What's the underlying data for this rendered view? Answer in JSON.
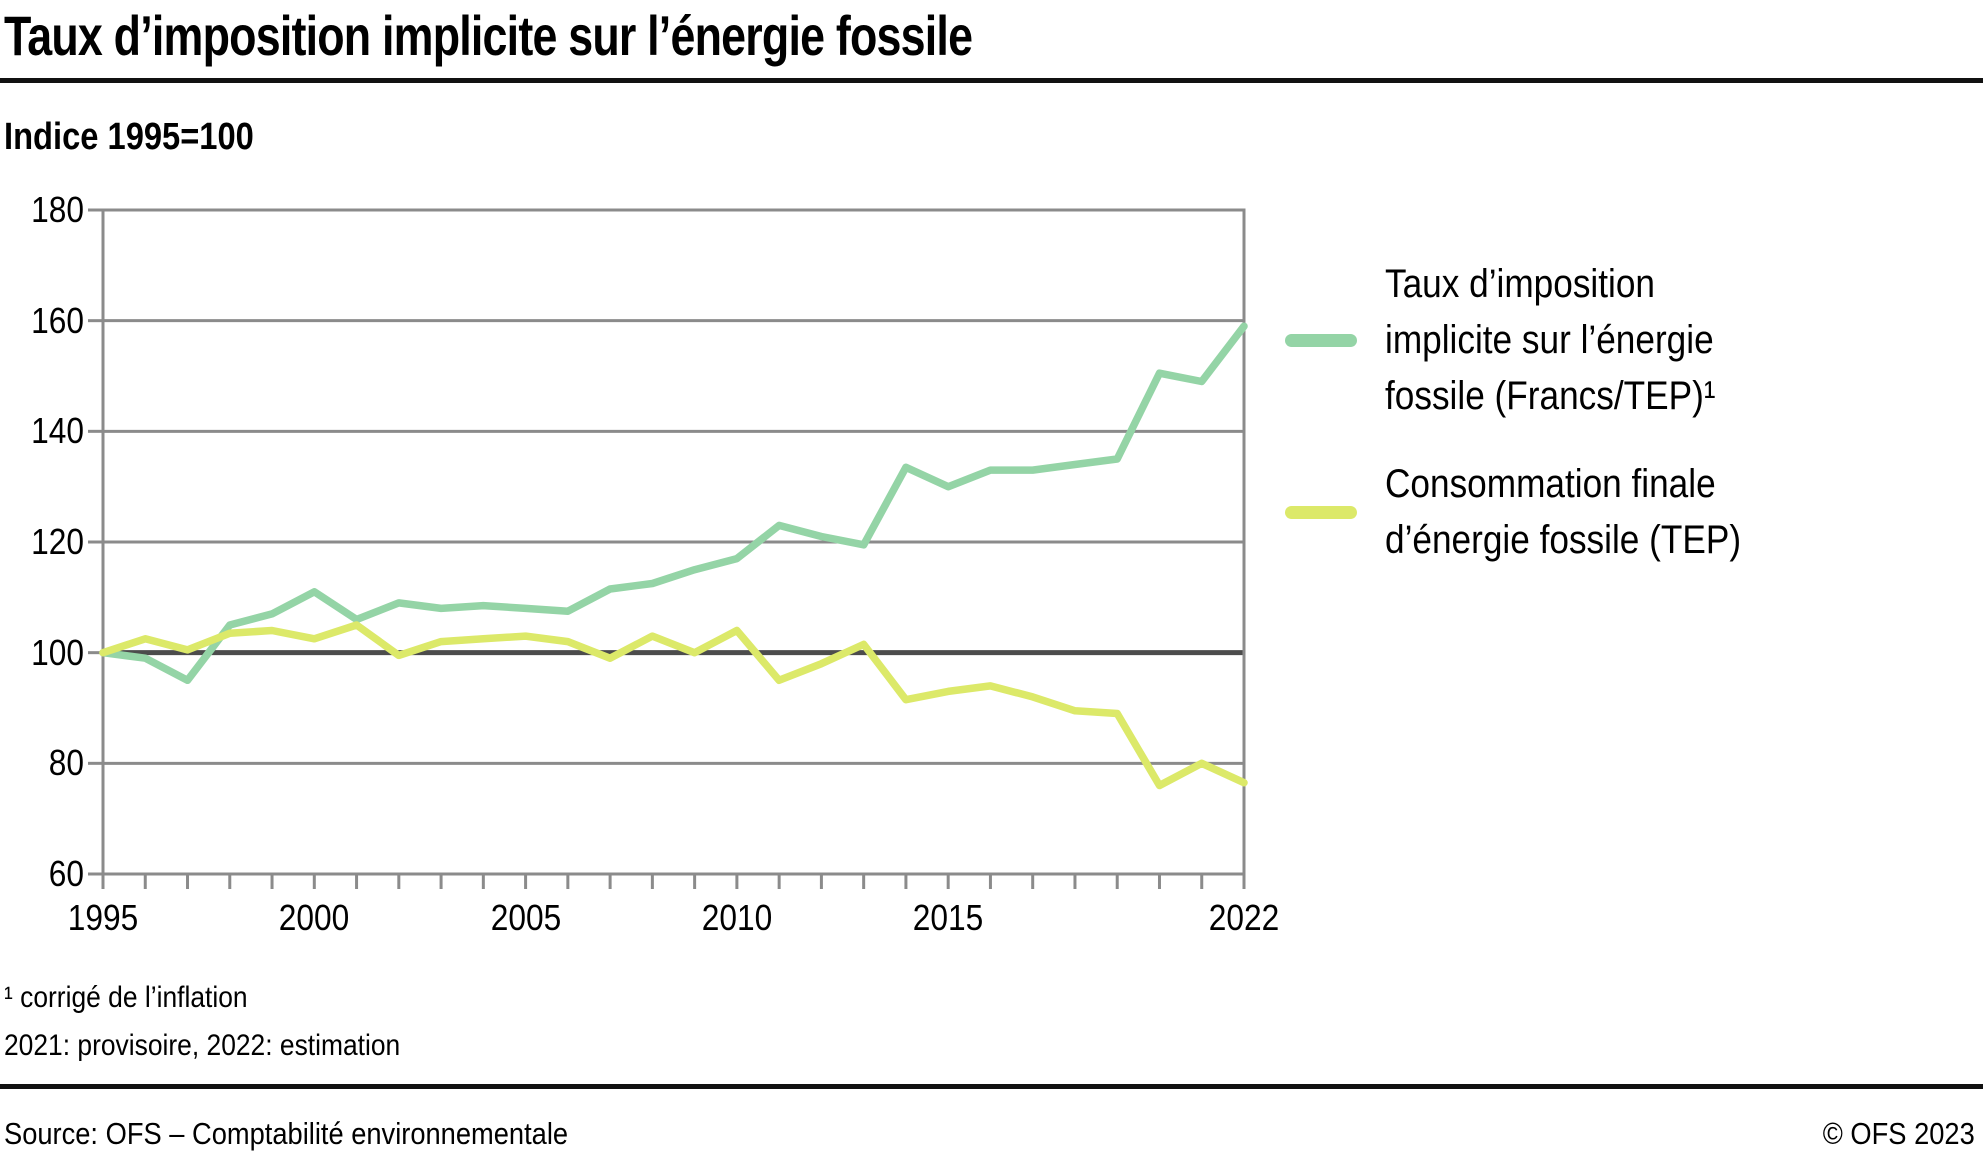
{
  "title": "Taux d’imposition implicite sur l’énergie fossile",
  "subtitle": "Indice 1995=100",
  "footnotes": {
    "inflation": "¹ corrigé de l’inflation",
    "status": "2021: provisoire, 2022: estimation"
  },
  "source": "Source: OFS – Comptabilité environnementale",
  "copyright": "© OFS 2023",
  "colors": {
    "series_tax": "#94d4a6",
    "series_consumption": "#dce969",
    "grid": "#8b8b8b",
    "frame": "#8b8b8b",
    "baseline": "#4c4c4c",
    "tick": "#8b8b8b",
    "rule": "#111111",
    "text": "#000000"
  },
  "legend": {
    "items": [
      {
        "label_lines": "Taux d’imposition\nimplicite sur l’énergie\nfossile (Francs/TEP)¹",
        "color_key": "series_tax"
      },
      {
        "label_lines": "Consommation finale\nd’énergie fossile (TEP)",
        "color_key": "series_consumption"
      }
    ]
  },
  "chart_data": {
    "type": "line",
    "title": "Taux d’imposition implicite sur l’énergie fossile",
    "index_note": "Indice 1995=100",
    "x": [
      1995,
      1996,
      1997,
      1998,
      1999,
      2000,
      2001,
      2002,
      2003,
      2004,
      2005,
      2006,
      2007,
      2008,
      2009,
      2010,
      2011,
      2012,
      2013,
      2014,
      2015,
      2016,
      2017,
      2018,
      2019,
      2020,
      2021,
      2022
    ],
    "series": [
      {
        "name": "Taux d’imposition implicite sur l’énergie fossile (Francs/TEP)¹",
        "color_key": "series_tax",
        "values": [
          100,
          99,
          95,
          105,
          107,
          111,
          106,
          109,
          108,
          108.5,
          108,
          107.5,
          111.5,
          112.5,
          115,
          117,
          123,
          121,
          119.5,
          133.5,
          130,
          133,
          133,
          134,
          135,
          150.5,
          149,
          159
        ]
      },
      {
        "name": "Consommation finale d’énergie fossile (TEP)",
        "color_key": "series_consumption",
        "values": [
          100,
          102.5,
          100.5,
          103.5,
          104,
          102.5,
          105,
          99.5,
          102,
          102.5,
          103,
          102,
          99,
          103,
          100,
          104,
          95,
          98,
          101.5,
          91.5,
          93,
          94,
          92,
          89.5,
          89,
          76,
          80,
          76.5
        ]
      }
    ],
    "xlim": [
      1995,
      2022
    ],
    "ylim": [
      60,
      180
    ],
    "yticks": [
      60,
      80,
      100,
      120,
      140,
      160,
      180
    ],
    "xticks_labeled": [
      {
        "year": 1995,
        "label": "1995"
      },
      {
        "year": 2000,
        "label": "2000"
      },
      {
        "year": 2005,
        "label": "2005"
      },
      {
        "year": 2010,
        "label": "2010"
      },
      {
        "year": 2015,
        "label": "2015"
      },
      {
        "year": 2022,
        "label": "2022"
      }
    ],
    "baseline_value": 100,
    "grid": "horizontal",
    "legend_position": "right"
  }
}
